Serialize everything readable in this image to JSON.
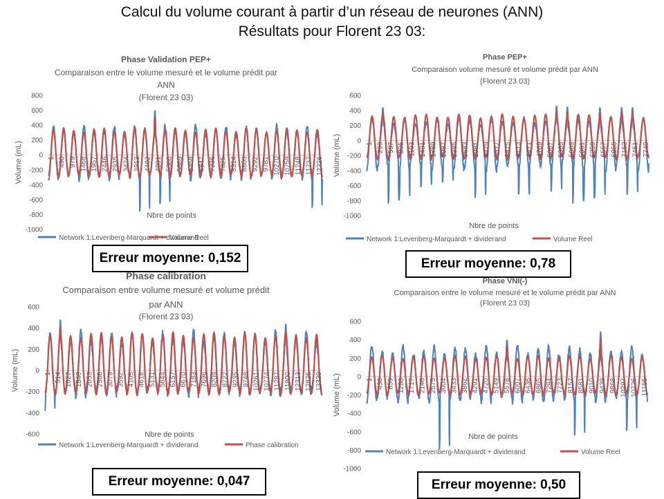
{
  "slide": {
    "title_line1": "Calcul du volume courant à partir d’un réseau de neurones (ANN)",
    "title_line2": "Résultats pour Florent 23 03:"
  },
  "colors": {
    "network": "#4f81bd",
    "reel": "#c0504d"
  },
  "chart_data": [
    {
      "type": "line",
      "title": "Phase Validation PEP+",
      "subtitle": [
        "Comparaison entre le volume mesuré et le volume prédit par",
        "ANN",
        "(Florent 23 03)"
      ],
      "ylabel": "Volume (mL)",
      "xlabel": "Nbre de points",
      "ylim": [
        -1000,
        800
      ],
      "ystep": 200,
      "x_ticks": [
        "1",
        "490",
        "979",
        "1468",
        "1957",
        "2446",
        "2935",
        "3424",
        "3913",
        "4402",
        "4891",
        "5380",
        "5869",
        "6358",
        "6847",
        "7336",
        "7825",
        "8314",
        "8803",
        "9292",
        "9781",
        "10270",
        "10759",
        "11248",
        "11737",
        "12226"
      ],
      "series": [
        {
          "name": "Network 1:Levenberg-Marquardt + dividerand",
          "color": "#4f81bd"
        },
        {
          "name": "Volume Reel",
          "color": "#c0504d"
        }
      ],
      "cycles": 27,
      "reel": {
        "max": 360,
        "min": -300
      },
      "network": {
        "max": 390,
        "min": -340
      },
      "spikes_min": [
        [
          9,
          -760
        ],
        [
          11,
          -660
        ],
        [
          26,
          -710
        ]
      ],
      "spikes_max": [
        [
          10,
          600
        ]
      ],
      "error_label": "Erreur moyenne: 0,152"
    },
    {
      "type": "line",
      "title": "Phase PEP+",
      "subtitle": [
        "Comparaison volume mesuré et volume prédit par ANN",
        "(Florent 23 03)"
      ],
      "ylabel": "Volume (mL)",
      "xlabel": "Nbre de points",
      "ylim": [
        -1000,
        600
      ],
      "ystep": 200,
      "x_ticks": [
        "1",
        "299",
        "597",
        "895",
        "1193",
        "1491",
        "1789",
        "2087",
        "2385",
        "2683",
        "2981",
        "3279",
        "3577",
        "3875",
        "4173",
        "4471",
        "4769",
        "5067",
        "5365",
        "5663",
        "5961",
        "6259",
        "6557",
        "6855",
        "7153",
        "7451",
        "7749"
      ],
      "series": [
        {
          "name": "Network 1:Levenberg-Marquardt + dividerand",
          "color": "#4f81bd"
        },
        {
          "name": "Volume Reel",
          "color": "#c0504d"
        }
      ],
      "cycles": 26,
      "reel": {
        "max": 350,
        "min": -250
      },
      "network": {
        "max": 300,
        "min": -420
      },
      "spikes_min": [
        [
          2,
          -840
        ],
        [
          3,
          -780
        ],
        [
          5,
          -620
        ],
        [
          7,
          -560
        ],
        [
          10,
          -760
        ],
        [
          14,
          -720
        ],
        [
          17,
          -680
        ],
        [
          19,
          -840
        ],
        [
          20,
          -800
        ],
        [
          21,
          -760
        ],
        [
          24,
          -720
        ]
      ],
      "spikes_max": [
        [
          1,
          440
        ],
        [
          17,
          460
        ],
        [
          18,
          450
        ],
        [
          21,
          440
        ],
        [
          23,
          440
        ],
        [
          24,
          440
        ]
      ],
      "error_label": "Erreur moyenne: 0,78"
    },
    {
      "type": "line",
      "title": "Phase calibration",
      "subtitle": [
        "Comparaison entre volume mesuré et volume prédit",
        "par ANN",
        "(Florent 23 03)"
      ],
      "ylabel": "Volume (mL)",
      "xlabel": "Nbre de points",
      "ylim": [
        -600,
        600
      ],
      "ystep": 200,
      "x_ticks": [
        "1",
        "514",
        "1027",
        "1540",
        "2053",
        "2566",
        "3079",
        "3592",
        "4105",
        "4618",
        "5131",
        "5644",
        "6157",
        "6670",
        "7183",
        "7696",
        "8209",
        "8722",
        "9235",
        "9748",
        "10261",
        "10774",
        "11287",
        "11800",
        "12313",
        "12826",
        "13339"
      ],
      "series": [
        {
          "name": "Network 1:Levenberg-Marquardt + dividerand",
          "color": "#4f81bd"
        },
        {
          "name": "Phase calibration",
          "color": "#c0504d"
        }
      ],
      "cycles": 27,
      "reel": {
        "max": 360,
        "min": -230
      },
      "network": {
        "max": 370,
        "min": -240
      },
      "spikes_min": [
        [
          0,
          -380
        ]
      ],
      "spikes_max": [
        [
          1,
          480
        ],
        [
          23,
          440
        ]
      ],
      "error_label": "Erreur moyenne: 0,047"
    },
    {
      "type": "line",
      "title": "Phase VNI(-)",
      "subtitle": [
        "Comparaison entre le volume mesuré et le volume prédit par ANN",
        "(Florent 23 03)"
      ],
      "ylabel": "Volume (mL)",
      "xlabel": "Nbre de points",
      "ylim": [
        -1000,
        600
      ],
      "ystep": 200,
      "x_ticks": [
        "1",
        "430",
        "859",
        "1288",
        "1717",
        "2146",
        "2575",
        "3004",
        "3433",
        "3862",
        "4291",
        "4720",
        "5149",
        "5578",
        "6007",
        "6436",
        "6865",
        "7294",
        "7723",
        "8152",
        "8581",
        "9010",
        "9439",
        "9868",
        "10297",
        "10726",
        "11155"
      ],
      "series": [
        {
          "name": "Network 1:Levenberg-Marquardt + dividerand",
          "color": "#4f81bd"
        },
        {
          "name": "Volume Reel",
          "color": "#c0504d"
        }
      ],
      "cycles": 27,
      "reel": {
        "max": 230,
        "min": -200
      },
      "network": {
        "max": 330,
        "min": -280
      },
      "spikes_min": [
        [
          7,
          -790
        ],
        [
          20,
          -640
        ],
        [
          25,
          -590
        ]
      ],
      "spikes_max": [
        [
          13,
          400
        ],
        [
          22,
          490
        ]
      ],
      "error_label": "Erreur moyenne: 0,50"
    }
  ]
}
